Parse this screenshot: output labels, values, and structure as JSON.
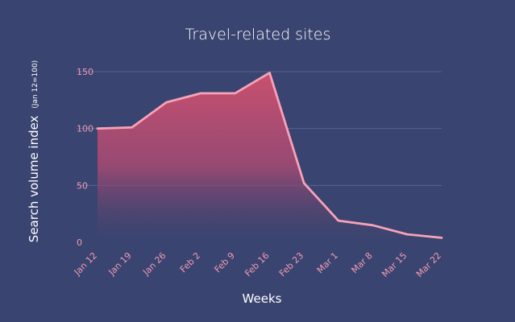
{
  "chart_data": {
    "type": "area",
    "title": "Travel-related sites",
    "xlabel": "Weeks",
    "ylabel": "Search volume index",
    "ylabel_note": "(Jan 12=100)",
    "categories": [
      "Jan 12",
      "Jan 19",
      "Jan 26",
      "Feb 2",
      "Feb 9",
      "Feb 16",
      "Feb 23",
      "Mar 1",
      "Mar 8",
      "Mar 15",
      "Mar 22"
    ],
    "values": [
      100,
      101,
      123,
      131,
      131,
      149,
      52,
      19,
      15,
      7,
      4
    ],
    "ylim": [
      0,
      150
    ],
    "yticks": [
      0,
      50,
      100,
      150
    ],
    "grid": true,
    "legend": false
  },
  "colors": {
    "background": "#3a4470",
    "line": "#f7a3b7",
    "area_top": "#c9506f",
    "area_bottom": "#3a4470",
    "grid": "#5a5f98",
    "tick_label": "#f29bb3"
  }
}
